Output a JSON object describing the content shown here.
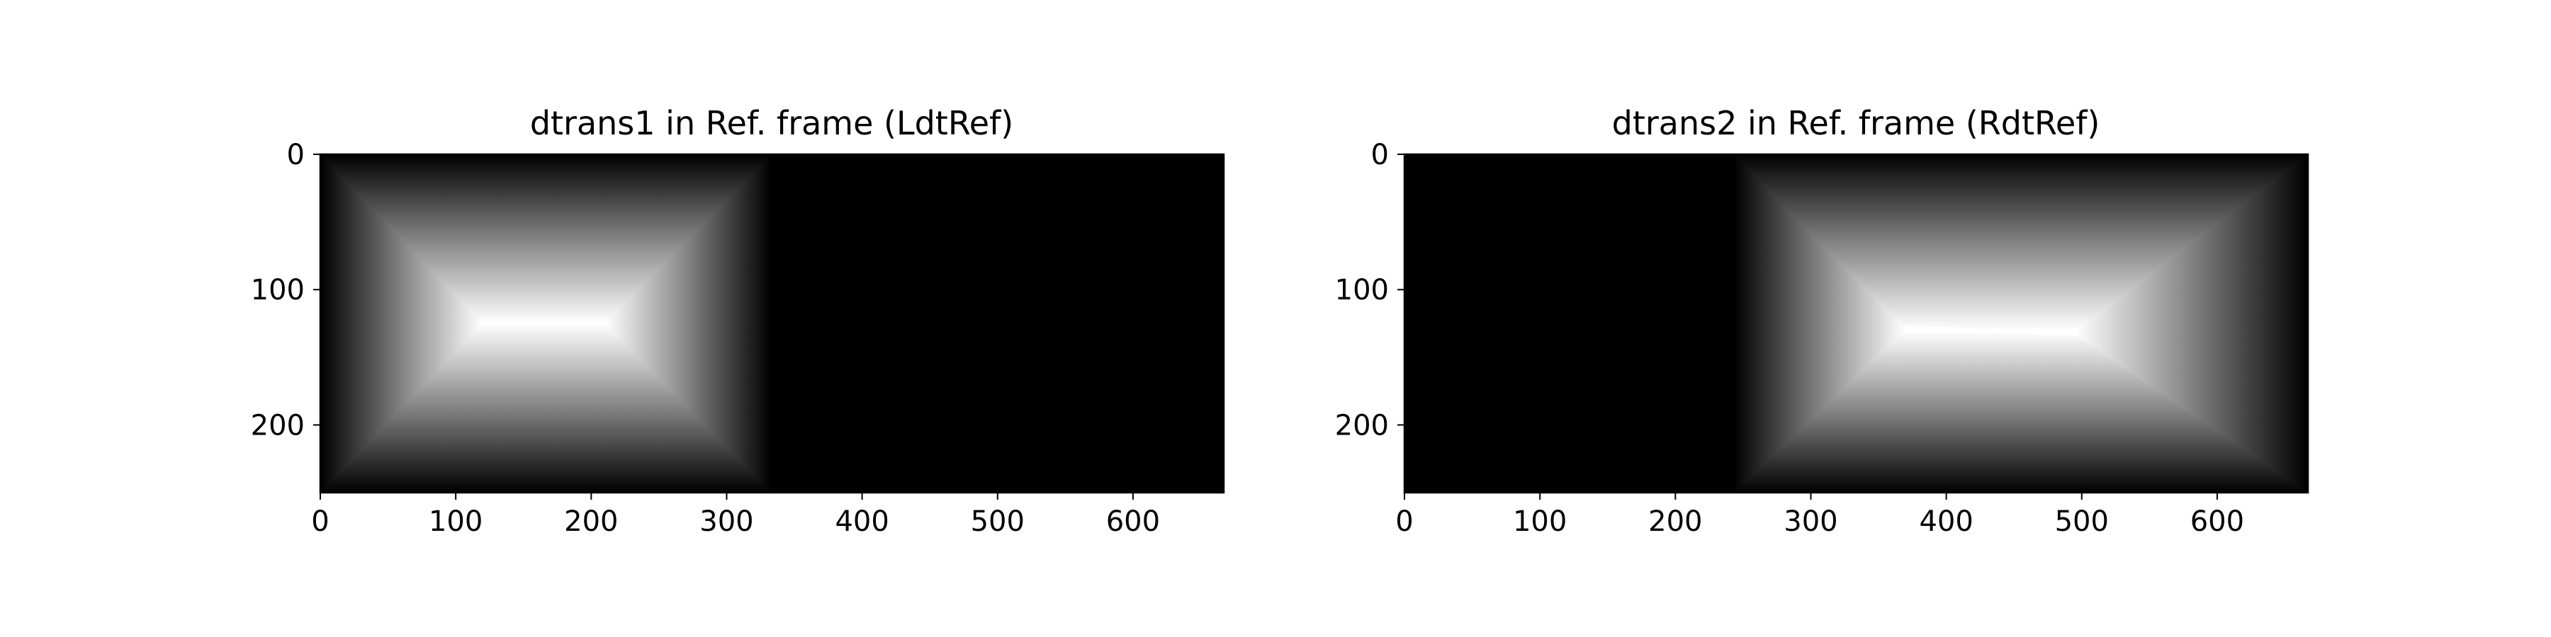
{
  "chart_data": [
    {
      "type": "heatmap",
      "title": "dtrans1 in Ref. frame (LdtRef)",
      "colormap": "gray",
      "xlim": [
        0,
        667
      ],
      "ylim": [
        250,
        0
      ],
      "x_ticks": [
        0,
        100,
        200,
        300,
        400,
        500,
        600
      ],
      "y_ticks": [
        0,
        100,
        200
      ],
      "bright_region": {
        "x": [
          0,
          333
        ],
        "y": [
          0,
          250
        ]
      },
      "peak_ridge": {
        "x": [
          120,
          210
        ],
        "y": [
          125,
          125
        ]
      },
      "rest_value": "black"
    },
    {
      "type": "heatmap",
      "title": "dtrans2 in Ref. frame (RdtRef)",
      "colormap": "gray",
      "xlim": [
        0,
        667
      ],
      "ylim": [
        250,
        0
      ],
      "x_ticks": [
        0,
        100,
        200,
        300,
        400,
        500,
        600
      ],
      "y_ticks": [
        0,
        100,
        200
      ],
      "bright_region": {
        "x": [
          243,
          667
        ],
        "y": [
          0,
          250
        ]
      },
      "peak_ridge": {
        "x": [
          370,
          495
        ],
        "y": [
          128,
          133
        ]
      },
      "rest_value": "black"
    }
  ]
}
